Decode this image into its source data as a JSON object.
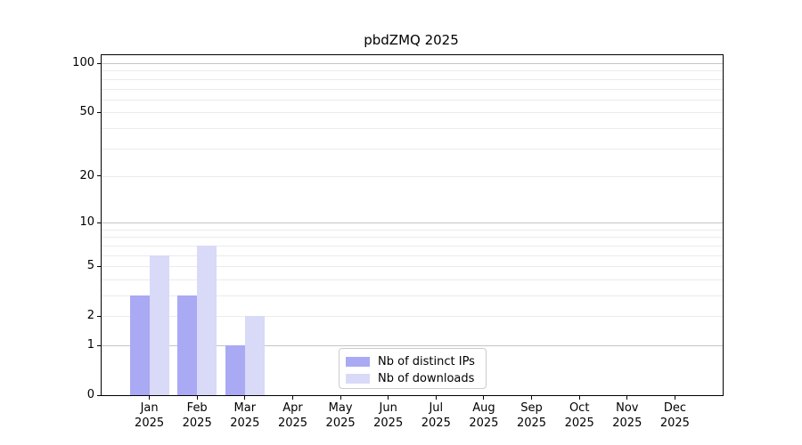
{
  "figure_title": "pbdZMQ 2025",
  "chart_data": {
    "type": "bar",
    "title": "pbdZMQ 2025",
    "xlabel": "",
    "ylabel": "",
    "yscale": "log1p",
    "grid": true,
    "x_year": "2025",
    "categories": [
      "Jan",
      "Feb",
      "Mar",
      "Apr",
      "May",
      "Jun",
      "Jul",
      "Aug",
      "Sep",
      "Oct",
      "Nov",
      "Dec"
    ],
    "series": [
      {
        "name": "Nb of distinct IPs",
        "color": "#a9a9f4",
        "values": [
          3,
          3,
          1,
          0,
          0,
          0,
          0,
          0,
          0,
          0,
          0,
          0
        ]
      },
      {
        "name": "Nb of downloads",
        "color": "#d9d9f8",
        "values": [
          6,
          7,
          2,
          0,
          0,
          0,
          0,
          0,
          0,
          0,
          0,
          0
        ]
      }
    ],
    "y_tick_values": [
      0,
      1,
      2,
      5,
      10,
      20,
      50,
      100
    ],
    "y_tick_labels": [
      "0",
      "1",
      "2",
      "5",
      "10",
      "20",
      "50",
      "100"
    ],
    "y_decade_gridlines": [
      1,
      10,
      100
    ],
    "y_minor_gridlines": [
      2,
      3,
      4,
      5,
      6,
      7,
      8,
      9,
      20,
      30,
      40,
      50,
      60,
      70,
      80,
      90
    ],
    "ylim": [
      0,
      112
    ],
    "legend_position": "bottom-center"
  },
  "colors": {
    "bar_distinct_ips": "#a9a9f4",
    "bar_downloads": "#d9d9f8",
    "grid_decade": "#c5c5c5",
    "grid_minor": "#ebebeb",
    "spine": "#000000",
    "legend_border": "#cccccc"
  }
}
